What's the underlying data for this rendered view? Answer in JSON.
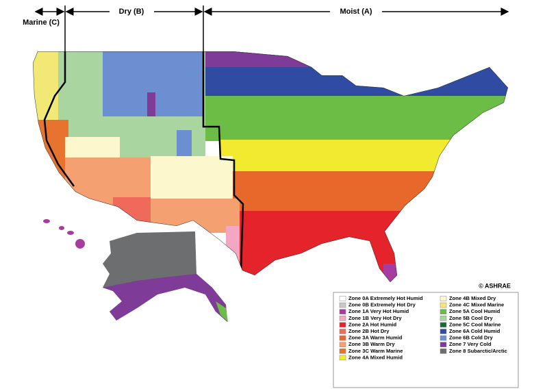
{
  "header": {
    "marine": "Marine (C)",
    "dry": "Dry (B)",
    "moist": "Moist (A)"
  },
  "copyright": "© ASHRAE",
  "legend": [
    {
      "label": "Zone 0A Extremely Hot Humid",
      "color": "#ffffff"
    },
    {
      "label": "Zone 0B Extremely Hot Dry",
      "color": "#c8c8c8"
    },
    {
      "label": "Zone 1A Very Hot Humid",
      "color": "#a73ca0"
    },
    {
      "label": "Zone 1B Very Hot Dry",
      "color": "#f3a7c3"
    },
    {
      "label": "Zone 2A Hot Humid",
      "color": "#e4232b"
    },
    {
      "label": "Zone 2B Hot Dry",
      "color": "#ef6a5a"
    },
    {
      "label": "Zone 3A Warm Humid",
      "color": "#e8672a"
    },
    {
      "label": "Zone 3B Warm Dry",
      "color": "#f4a070"
    },
    {
      "label": "Zone 3C Warm Marine",
      "color": "#e8732f"
    },
    {
      "label": "Zone 4A Mixed Humid",
      "color": "#f2ea2e"
    },
    {
      "label": "Zone 4B Mixed Dry",
      "color": "#fdf7cd"
    },
    {
      "label": "Zone 4C Mixed Marine",
      "color": "#f2e876"
    },
    {
      "label": "Zone 5A Cool Humid",
      "color": "#6cbd45"
    },
    {
      "label": "Zone 5B Cool Dry",
      "color": "#a8d5a0"
    },
    {
      "label": "Zone 5C Cool Marine",
      "color": "#1c6a37"
    },
    {
      "label": "Zone 6A Cold Humid",
      "color": "#2f4ca2"
    },
    {
      "label": "Zone 6B Cold Dry",
      "color": "#6c8fd1"
    },
    {
      "label": "Zone 7 Very Cold",
      "color": "#7e3b97"
    },
    {
      "label": "Zone 8 Subarctic/Arctic",
      "color": "#6d6e70"
    }
  ]
}
